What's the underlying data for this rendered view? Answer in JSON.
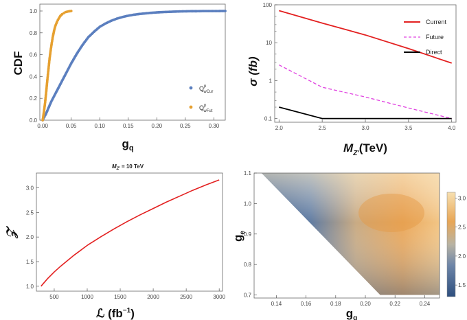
{
  "chart_data": [
    {
      "type": "scatter",
      "xlabel": "g",
      "xlabel_sub": "q",
      "ylabel": "CDF",
      "xlim": [
        -0.005,
        0.32
      ],
      "ylim": [
        0,
        1.0
      ],
      "xticks": [
        "0.00",
        "0.05",
        "0.10",
        "0.15",
        "0.20",
        "0.25",
        "0.30"
      ],
      "yticks": [
        "0.0",
        "0.2",
        "0.4",
        "0.6",
        "0.8",
        "1.0"
      ],
      "legend_position": "right",
      "series": [
        {
          "name": "Q_wCur^p",
          "label_main": "Q",
          "label_sub": "wCur",
          "label_sup": "p",
          "color": "#5b7fbf",
          "x": [
            0.0,
            0.003,
            0.006,
            0.01,
            0.015,
            0.02,
            0.03,
            0.04,
            0.05,
            0.06,
            0.07,
            0.08,
            0.09,
            0.1,
            0.11,
            0.12,
            0.13,
            0.14,
            0.15,
            0.16,
            0.17,
            0.18,
            0.19,
            0.2,
            0.21,
            0.22,
            0.23,
            0.24,
            0.25,
            0.26,
            0.27,
            0.28,
            0.3,
            0.32
          ],
          "y": [
            0.0,
            0.03,
            0.06,
            0.11,
            0.17,
            0.22,
            0.32,
            0.42,
            0.52,
            0.61,
            0.69,
            0.76,
            0.81,
            0.855,
            0.885,
            0.91,
            0.93,
            0.945,
            0.957,
            0.966,
            0.973,
            0.978,
            0.983,
            0.987,
            0.99,
            0.992,
            0.994,
            0.996,
            0.997,
            0.998,
            0.998,
            0.999,
            0.999,
            1.0
          ]
        },
        {
          "name": "Q_wFut^p",
          "label_main": "Q",
          "label_sub": "wFut",
          "label_sup": "p",
          "color": "#e6a030",
          "x": [
            0.0,
            0.002,
            0.004,
            0.006,
            0.008,
            0.01,
            0.012,
            0.014,
            0.016,
            0.018,
            0.02,
            0.022,
            0.025,
            0.028,
            0.031,
            0.034,
            0.037,
            0.04,
            0.045,
            0.05
          ],
          "y": [
            0.0,
            0.07,
            0.15,
            0.25,
            0.36,
            0.46,
            0.56,
            0.64,
            0.71,
            0.77,
            0.82,
            0.86,
            0.9,
            0.93,
            0.955,
            0.97,
            0.98,
            0.99,
            0.996,
            1.0
          ]
        }
      ]
    },
    {
      "type": "line",
      "xlabel": "M",
      "xlabel_sub": "Z'",
      "xlabel_tail": "(TeV)",
      "ylabel": "σ (fb)",
      "yscale": "log",
      "xlim": [
        1.95,
        4.05
      ],
      "ylim": [
        0.08,
        100
      ],
      "xticks": [
        "2.0",
        "2.5",
        "3.0",
        "3.5",
        "4.0"
      ],
      "yticks": [
        "0.1",
        "1",
        "10",
        "100"
      ],
      "legend_position": "top-right",
      "series": [
        {
          "name": "Current",
          "color": "#e32020",
          "dash": "solid",
          "x": [
            2.0,
            2.5,
            3.0,
            3.5,
            4.0
          ],
          "y": [
            70,
            33,
            16,
            7,
            2.9
          ]
        },
        {
          "name": "Future",
          "color": "#e040e0",
          "dash": "dashed",
          "x": [
            2.0,
            2.5,
            3.0,
            3.5,
            4.0
          ],
          "y": [
            2.6,
            0.67,
            0.37,
            0.19,
            0.1
          ]
        },
        {
          "name": "Direct",
          "color": "#000000",
          "dash": "solid",
          "x": [
            2.0,
            2.5,
            3.0,
            3.5,
            4.0
          ],
          "y": [
            0.2,
            0.1,
            0.1,
            0.1,
            0.1
          ]
        }
      ]
    },
    {
      "type": "line",
      "title": "M",
      "title_sub": "Z'",
      "title_tail": " = 10 TeV",
      "xlabel": "ℒ (fb",
      "xlabel_sup": "−1",
      "xlabel_tail": ")",
      "ylabel": "𝒵",
      "xlim": [
        230,
        3050
      ],
      "ylim": [
        0.9,
        3.3
      ],
      "xticks": [
        "500",
        "1000",
        "1500",
        "2000",
        "2500",
        "3000"
      ],
      "yticks": [
        "1.0",
        "1.5",
        "2.0",
        "2.5",
        "3.0"
      ],
      "series": [
        {
          "color": "#e32020",
          "x": [
            300,
            400,
            500,
            600,
            800,
            1000,
            1200,
            1400,
            1600,
            1800,
            2000,
            2200,
            2400,
            2600,
            2800,
            3000
          ],
          "y": [
            1.0,
            1.155,
            1.29,
            1.41,
            1.63,
            1.83,
            2.0,
            2.16,
            2.31,
            2.45,
            2.58,
            2.71,
            2.83,
            2.95,
            3.06,
            3.16
          ]
        }
      ]
    },
    {
      "type": "heatmap",
      "xlabel": "g",
      "xlabel_sub": "q",
      "ylabel": "g",
      "ylabel_sub": "e",
      "xlim": [
        0.125,
        0.25
      ],
      "ylim": [
        0.69,
        1.1
      ],
      "xticks": [
        "0.14",
        "0.16",
        "0.18",
        "0.20",
        "0.22",
        "0.24"
      ],
      "yticks": [
        "0.7",
        "0.8",
        "0.9",
        "1.0",
        "1.1"
      ],
      "region": "upper-right triangle from (0.13, 1.10) to (0.21, 0.70)",
      "colorbar_ticks": [
        "1.5",
        "2.0",
        "2.5",
        "3.0"
      ],
      "colorbar_range": [
        1.3,
        3.1
      ],
      "colormap": [
        "#2e4f7e",
        "#6d85a8",
        "#b8b3a3",
        "#e8a656",
        "#f7e0b0"
      ]
    }
  ]
}
